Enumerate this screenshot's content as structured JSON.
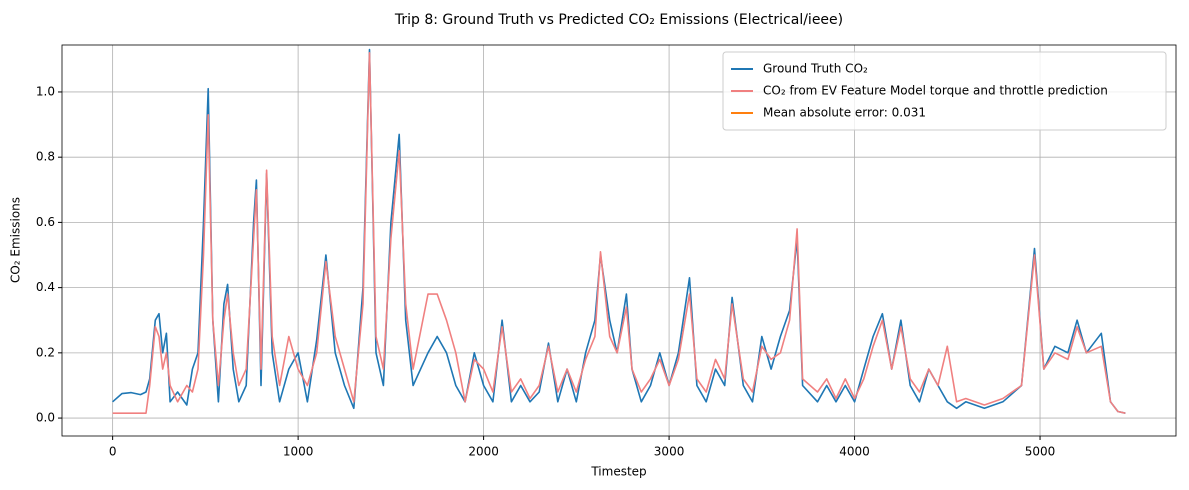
{
  "chart_data": {
    "type": "line",
    "title": "Trip 8: Ground Truth vs Predicted CO₂ Emissions (Electrical/ieee)",
    "x_label": "Timestep",
    "y_label": "CO₂ Emissions",
    "x": [
      0,
      50,
      100,
      150,
      180,
      200,
      230,
      250,
      270,
      290,
      310,
      350,
      400,
      430,
      460,
      490,
      515,
      540,
      570,
      600,
      620,
      650,
      680,
      720,
      760,
      775,
      800,
      830,
      860,
      900,
      950,
      1000,
      1050,
      1100,
      1150,
      1200,
      1250,
      1300,
      1350,
      1385,
      1420,
      1460,
      1500,
      1545,
      1580,
      1620,
      1700,
      1750,
      1800,
      1850,
      1900,
      1950,
      2000,
      2050,
      2100,
      2150,
      2200,
      2250,
      2300,
      2350,
      2400,
      2450,
      2500,
      2550,
      2600,
      2630,
      2680,
      2720,
      2770,
      2800,
      2850,
      2900,
      2950,
      3000,
      3050,
      3110,
      3150,
      3200,
      3250,
      3300,
      3340,
      3400,
      3450,
      3500,
      3550,
      3600,
      3650,
      3690,
      3720,
      3800,
      3850,
      3900,
      3950,
      4000,
      4050,
      4100,
      4150,
      4200,
      4250,
      4300,
      4350,
      4400,
      4450,
      4500,
      4550,
      4600,
      4700,
      4800,
      4900,
      4970,
      5020,
      5080,
      5150,
      5200,
      5250,
      5330,
      5380,
      5420,
      5460
    ],
    "series": [
      {
        "name": "Ground Truth CO₂",
        "color": "#1f77b4",
        "values": [
          0.05,
          0.075,
          0.078,
          0.072,
          0.08,
          0.12,
          0.3,
          0.32,
          0.2,
          0.26,
          0.05,
          0.08,
          0.04,
          0.15,
          0.2,
          0.6,
          1.01,
          0.3,
          0.05,
          0.35,
          0.41,
          0.15,
          0.05,
          0.1,
          0.6,
          0.73,
          0.1,
          0.75,
          0.2,
          0.05,
          0.15,
          0.2,
          0.05,
          0.24,
          0.5,
          0.2,
          0.1,
          0.03,
          0.4,
          1.13,
          0.2,
          0.1,
          0.6,
          0.87,
          0.3,
          0.1,
          0.2,
          0.25,
          0.2,
          0.1,
          0.05,
          0.2,
          0.1,
          0.05,
          0.3,
          0.05,
          0.1,
          0.05,
          0.08,
          0.23,
          0.05,
          0.15,
          0.05,
          0.2,
          0.3,
          0.5,
          0.3,
          0.2,
          0.38,
          0.15,
          0.05,
          0.1,
          0.2,
          0.1,
          0.2,
          0.43,
          0.1,
          0.05,
          0.15,
          0.1,
          0.37,
          0.1,
          0.05,
          0.25,
          0.15,
          0.25,
          0.33,
          0.55,
          0.1,
          0.05,
          0.1,
          0.05,
          0.1,
          0.05,
          0.15,
          0.25,
          0.32,
          0.15,
          0.3,
          0.1,
          0.05,
          0.15,
          0.1,
          0.05,
          0.03,
          0.05,
          0.03,
          0.05,
          0.1,
          0.52,
          0.15,
          0.22,
          0.2,
          0.3,
          0.2,
          0.26,
          0.05,
          0.02,
          0.015
        ]
      },
      {
        "name": "CO₂ from EV Feature Model torque and throttle prediction",
        "color": "#f08080",
        "values": [
          0.015,
          0.015,
          0.015,
          0.015,
          0.015,
          0.1,
          0.28,
          0.25,
          0.15,
          0.2,
          0.1,
          0.05,
          0.1,
          0.08,
          0.15,
          0.5,
          0.93,
          0.3,
          0.1,
          0.3,
          0.38,
          0.2,
          0.1,
          0.15,
          0.55,
          0.7,
          0.15,
          0.76,
          0.25,
          0.1,
          0.25,
          0.15,
          0.1,
          0.2,
          0.48,
          0.25,
          0.15,
          0.05,
          0.35,
          1.12,
          0.25,
          0.15,
          0.55,
          0.82,
          0.35,
          0.15,
          0.38,
          0.38,
          0.3,
          0.2,
          0.05,
          0.18,
          0.15,
          0.08,
          0.28,
          0.08,
          0.12,
          0.06,
          0.1,
          0.22,
          0.08,
          0.15,
          0.08,
          0.18,
          0.25,
          0.51,
          0.25,
          0.2,
          0.34,
          0.15,
          0.08,
          0.12,
          0.18,
          0.1,
          0.18,
          0.38,
          0.12,
          0.08,
          0.18,
          0.12,
          0.35,
          0.12,
          0.08,
          0.22,
          0.18,
          0.2,
          0.3,
          0.58,
          0.12,
          0.08,
          0.12,
          0.06,
          0.12,
          0.06,
          0.12,
          0.22,
          0.3,
          0.15,
          0.28,
          0.12,
          0.08,
          0.15,
          0.1,
          0.22,
          0.05,
          0.06,
          0.04,
          0.06,
          0.1,
          0.5,
          0.15,
          0.2,
          0.18,
          0.28,
          0.2,
          0.22,
          0.05,
          0.02,
          0.015
        ]
      }
    ],
    "legend_extra": {
      "name": "Mean absolute error: 0.031",
      "color": "#ff7f0e"
    },
    "legend": "upper right",
    "xlim": [
      -273,
      5733
    ],
    "ylim": [
      -0.055,
      1.144
    ],
    "xticks": [
      0,
      1000,
      2000,
      3000,
      4000,
      5000
    ],
    "yticks": [
      {
        "value": 0,
        "label": "0.0"
      },
      0.2,
      0.4,
      0.6,
      0.8,
      {
        "value": 1,
        "label": "1.0"
      }
    ],
    "grid": true
  }
}
